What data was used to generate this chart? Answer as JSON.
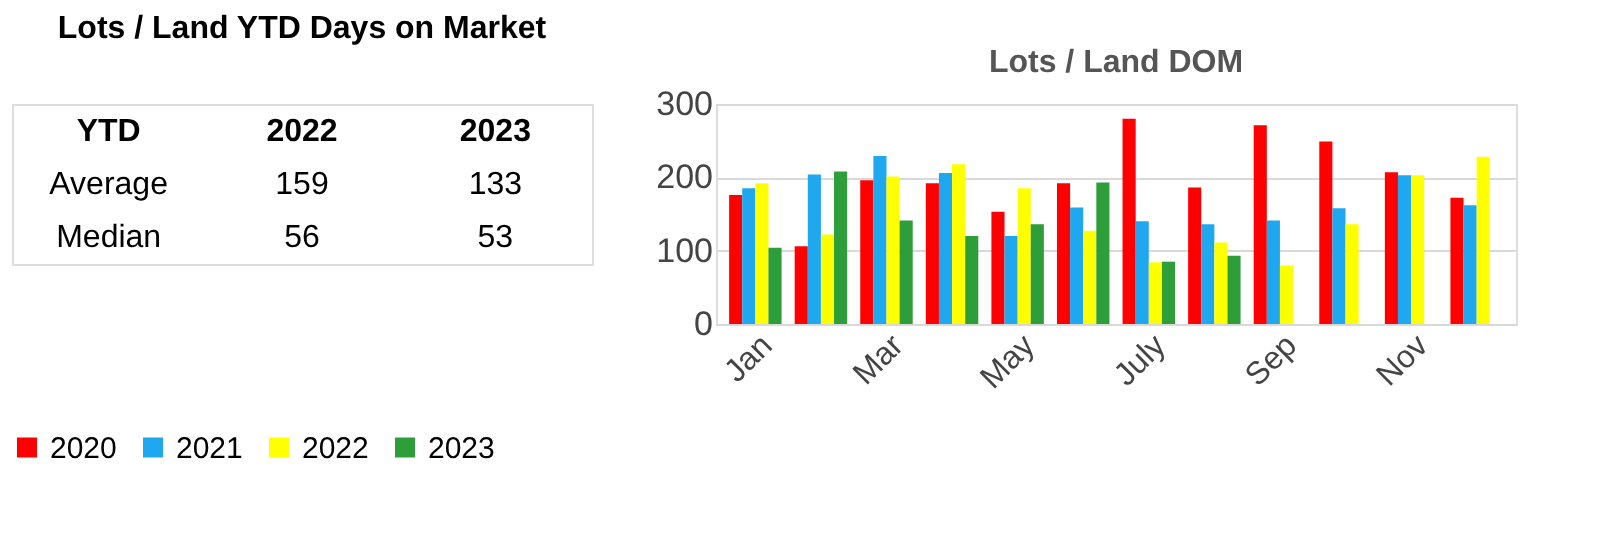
{
  "chart_data": [
    {
      "type": "other",
      "title": "Lots / Land YTD Days on Market",
      "annotations": [
        "YTD",
        "2022",
        "2023",
        "Average",
        "159",
        "133",
        "Median",
        "56",
        "53"
      ]
    },
    {
      "type": "bar",
      "title": "Lots / Land DOM",
      "categories": [
        "Jan",
        null,
        "Mar",
        null,
        "May",
        null,
        "July",
        null,
        "Sep",
        null,
        "Nov",
        null
      ],
      "series": [
        {
          "name": "2020",
          "color": "#ff0000",
          "values": [
            176,
            106,
            196,
            192,
            153,
            192,
            280,
            186,
            271,
            249,
            207,
            172
          ]
        },
        {
          "name": "2021",
          "color": "#1fa7f0",
          "values": [
            185,
            204,
            229,
            206,
            120,
            159,
            140,
            136,
            141,
            158,
            203,
            162
          ]
        },
        {
          "name": "2022",
          "color": "#ffff00",
          "values": [
            192,
            122,
            201,
            218,
            185,
            127,
            84,
            111,
            80,
            136,
            203,
            228
          ]
        },
        {
          "name": "2023",
          "color": "#2e9e3a",
          "values": [
            104,
            208,
            141,
            120,
            136,
            193,
            85,
            93,
            0,
            0,
            0,
            0
          ]
        }
      ],
      "ylim": [
        0,
        300
      ],
      "yticks": [
        0,
        100,
        200,
        300
      ],
      "grid": "y",
      "legend": "bottom"
    }
  ]
}
